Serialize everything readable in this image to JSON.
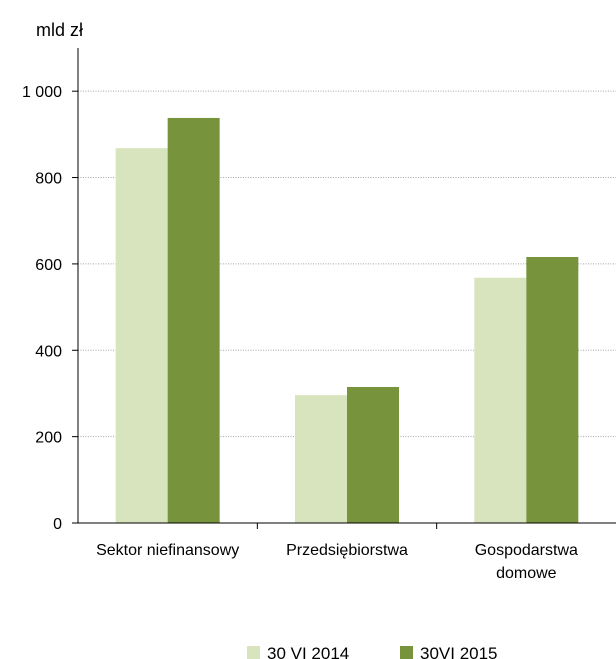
{
  "chart_data": {
    "type": "bar",
    "unit_label": "mld zł",
    "categories": [
      [
        "Sektor niefinansowy"
      ],
      [
        "Przedsiębiorstwa"
      ],
      [
        "Gospodarstwa",
        "domowe"
      ]
    ],
    "series": [
      {
        "name": "30 VI 2014",
        "color": "#d7e4bd",
        "values": [
          868,
          296,
          568
        ]
      },
      {
        "name": "30VI 2015",
        "color": "#77933c",
        "values": [
          938,
          315,
          616
        ]
      }
    ],
    "ylim": [
      0,
      1100
    ],
    "yticks": [
      0,
      200,
      400,
      600,
      800,
      1000
    ],
    "ytick_labels": [
      "0",
      "200",
      "400",
      "600",
      "800",
      "1 000"
    ],
    "grid": true,
    "grid_color": "#a6a6a6",
    "legend_position": "bottom"
  }
}
